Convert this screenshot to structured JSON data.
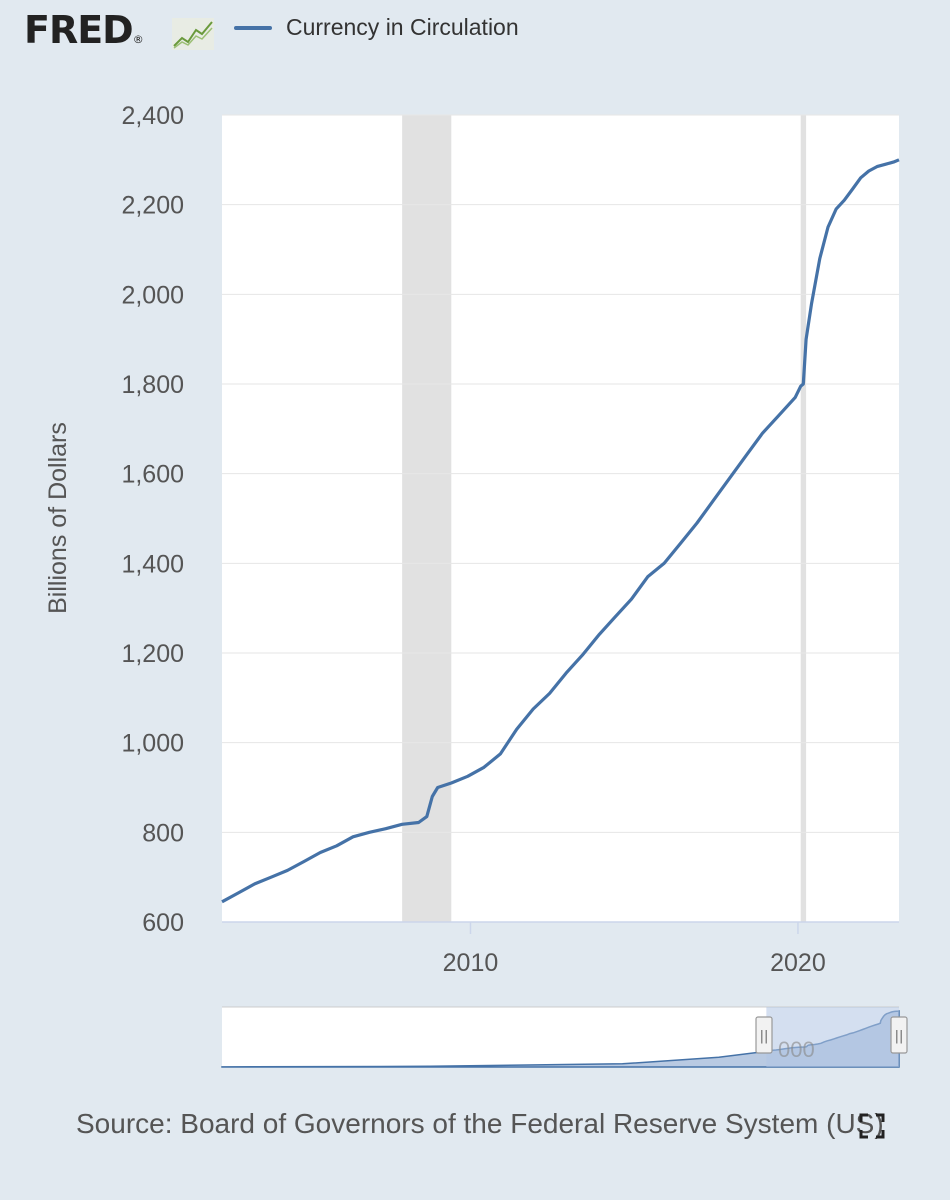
{
  "brand": {
    "logo_text": "FRED",
    "registered_mark": "®"
  },
  "colors": {
    "series": "#4572a7",
    "recession": "#e1e1e1",
    "background": "#e1e9f0",
    "plot": "#ffffff",
    "grid": "#e6e6e6",
    "navigator_mask": "#b0c4e4",
    "navigator_fill": "#7f9fcb"
  },
  "legend": {
    "label": "Currency in Circulation"
  },
  "source": {
    "text": "Source: Board of Governors of the Federal Reserve System (US)"
  },
  "icons": {
    "logo_chart": "line-chart-icon",
    "fullscreen": "fullscreen-icon"
  },
  "navigator": {
    "handle_glyph": "||",
    "label_fragment": "000"
  },
  "chart_data": {
    "type": "line",
    "title": "",
    "xlabel": "",
    "ylabel": "Billions of Dollars",
    "xlim": [
      "2002-06-01",
      "2023-02-01"
    ],
    "ylim": [
      600,
      2400
    ],
    "yticks": [
      600,
      800,
      1000,
      1200,
      1400,
      1600,
      1800,
      2000,
      2200,
      2400
    ],
    "xticks": [
      "2010-01-01",
      "2020-01-01"
    ],
    "xtick_labels": [
      "2010",
      "2020"
    ],
    "ytick_labels": [
      "600",
      "800",
      "1,000",
      "1,200",
      "1,400",
      "1,600",
      "1,800",
      "2,000",
      "2,200",
      "2,400"
    ],
    "recessions": [
      {
        "start": "2007-12-01",
        "end": "2009-06-01"
      },
      {
        "start": "2020-02-01",
        "end": "2020-04-01"
      }
    ],
    "series": [
      {
        "name": "Currency in Circulation",
        "x": [
          "2002-06-01",
          "2002-12-01",
          "2003-06-01",
          "2003-12-01",
          "2004-06-01",
          "2004-12-01",
          "2005-06-01",
          "2005-12-01",
          "2006-06-01",
          "2006-12-01",
          "2007-06-01",
          "2007-12-01",
          "2008-06-01",
          "2008-09-01",
          "2008-11-01",
          "2009-01-01",
          "2009-06-01",
          "2009-12-01",
          "2010-06-01",
          "2010-12-01",
          "2011-06-01",
          "2011-12-01",
          "2012-06-01",
          "2012-12-01",
          "2013-06-01",
          "2013-12-01",
          "2014-06-01",
          "2014-12-01",
          "2015-06-01",
          "2015-12-01",
          "2016-06-01",
          "2016-12-01",
          "2017-06-01",
          "2017-12-01",
          "2018-06-01",
          "2018-12-01",
          "2019-06-01",
          "2019-12-01",
          "2020-02-01",
          "2020-03-01",
          "2020-04-01",
          "2020-06-01",
          "2020-09-01",
          "2020-12-01",
          "2021-03-01",
          "2021-06-01",
          "2021-09-01",
          "2021-12-01",
          "2022-03-01",
          "2022-06-01",
          "2022-09-01",
          "2022-12-01",
          "2023-02-01"
        ],
        "values": [
          645,
          665,
          685,
          700,
          715,
          735,
          755,
          770,
          790,
          800,
          808,
          818,
          822,
          835,
          880,
          900,
          910,
          925,
          945,
          975,
          1030,
          1075,
          1110,
          1155,
          1195,
          1240,
          1280,
          1320,
          1370,
          1400,
          1445,
          1490,
          1540,
          1590,
          1640,
          1690,
          1730,
          1770,
          1795,
          1800,
          1900,
          1980,
          2080,
          2150,
          2190,
          2210,
          2235,
          2260,
          2275,
          2285,
          2290,
          2295,
          2300
        ]
      }
    ]
  }
}
